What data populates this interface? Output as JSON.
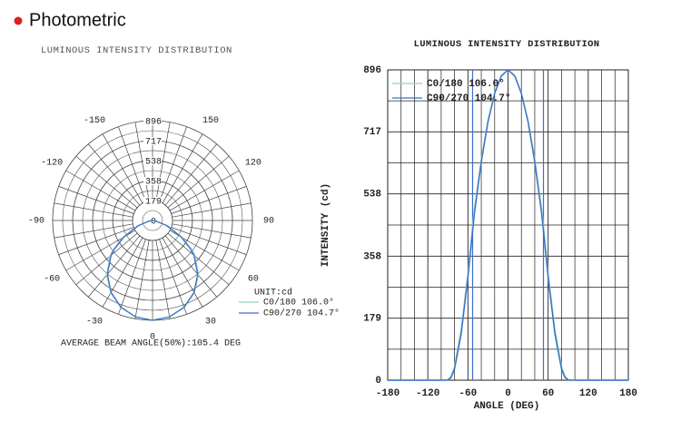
{
  "header": {
    "title": "Photometric"
  },
  "chart_data": [
    {
      "type": "polar",
      "title": "LUMINOUS INTENSITY DISTRIBUTION",
      "footer": "AVERAGE BEAM ANGLE(50%):105.4 DEG",
      "unit_label": "UNIT:cd",
      "rlim": [
        0,
        896
      ],
      "rticks": [
        0,
        179,
        358,
        538,
        717,
        896
      ],
      "minor_rticks": [
        89.6,
        268.5,
        448,
        627.5,
        806.5
      ],
      "angle_ticks": [
        -150,
        -120,
        -90,
        -60,
        -30,
        0,
        30,
        60,
        90,
        120,
        150
      ],
      "minor_angle_ticks": [
        -170,
        -160,
        -140,
        -130,
        -110,
        -100,
        -80,
        -70,
        -50,
        -40,
        -20,
        -10,
        10,
        20,
        40,
        50,
        70,
        80,
        100,
        110,
        130,
        140,
        160,
        170,
        180
      ],
      "x": [
        -180,
        -150,
        -120,
        -100,
        -90,
        -85,
        -80,
        -70,
        -60,
        -53,
        -50,
        -40,
        -30,
        -20,
        -10,
        0,
        10,
        20,
        30,
        40,
        50,
        53,
        60,
        70,
        80,
        85,
        90,
        100,
        120,
        150,
        180
      ],
      "series": [
        {
          "name": "C0/180 106.0°",
          "color": "#8fd3c6",
          "values": [
            0,
            0,
            0,
            0,
            2,
            12,
            40,
            150,
            310,
            448,
            500,
            640,
            750,
            830,
            880,
            896,
            880,
            830,
            750,
            640,
            500,
            448,
            310,
            150,
            40,
            12,
            2,
            0,
            0,
            0,
            0
          ]
        },
        {
          "name": "C90/270 104.7°",
          "color": "#3a6fc9",
          "values": [
            0,
            0,
            0,
            0,
            0,
            8,
            32,
            135,
            295,
            430,
            485,
            630,
            745,
            828,
            878,
            896,
            878,
            828,
            745,
            630,
            485,
            430,
            295,
            135,
            32,
            8,
            0,
            0,
            0,
            0,
            0
          ]
        }
      ]
    },
    {
      "type": "line",
      "title": "LUMINOUS INTENSITY DISTRIBUTION",
      "xlabel": "ANGLE (DEG)",
      "ylabel": "INTENSITY (cd)",
      "xlim": [
        -180,
        180
      ],
      "xticks": [
        -180,
        -120,
        -60,
        0,
        60,
        120,
        180
      ],
      "minor_xticks": [
        -160,
        -140,
        -100,
        -80,
        -40,
        -20,
        20,
        40,
        80,
        100,
        140,
        160
      ],
      "ylim": [
        0,
        896
      ],
      "yticks": [
        0,
        179,
        358,
        538,
        717,
        896
      ],
      "minor_yticks": [
        89.5,
        268.5,
        448,
        627.5,
        806.5
      ],
      "grid": true,
      "beam_lines": [
        -53,
        53
      ],
      "beam_color": "#3a6fc9",
      "x": [
        -180,
        -150,
        -120,
        -100,
        -90,
        -85,
        -80,
        -70,
        -60,
        -53,
        -50,
        -40,
        -30,
        -20,
        -10,
        0,
        10,
        20,
        30,
        40,
        50,
        53,
        60,
        70,
        80,
        85,
        90,
        100,
        120,
        150,
        180
      ],
      "series": [
        {
          "name": "C0/180 106.0°",
          "color": "#8fd3c6",
          "values": [
            0,
            0,
            0,
            0,
            2,
            12,
            40,
            150,
            310,
            448,
            500,
            640,
            750,
            830,
            880,
            896,
            880,
            830,
            750,
            640,
            500,
            448,
            310,
            150,
            40,
            12,
            2,
            0,
            0,
            0,
            0
          ]
        },
        {
          "name": "C90/270 104.7°",
          "color": "#3a6fc9",
          "values": [
            0,
            0,
            0,
            0,
            0,
            8,
            32,
            135,
            295,
            430,
            485,
            630,
            745,
            828,
            878,
            896,
            878,
            828,
            745,
            630,
            485,
            430,
            295,
            135,
            32,
            8,
            0,
            0,
            0,
            0,
            0
          ]
        }
      ]
    }
  ]
}
